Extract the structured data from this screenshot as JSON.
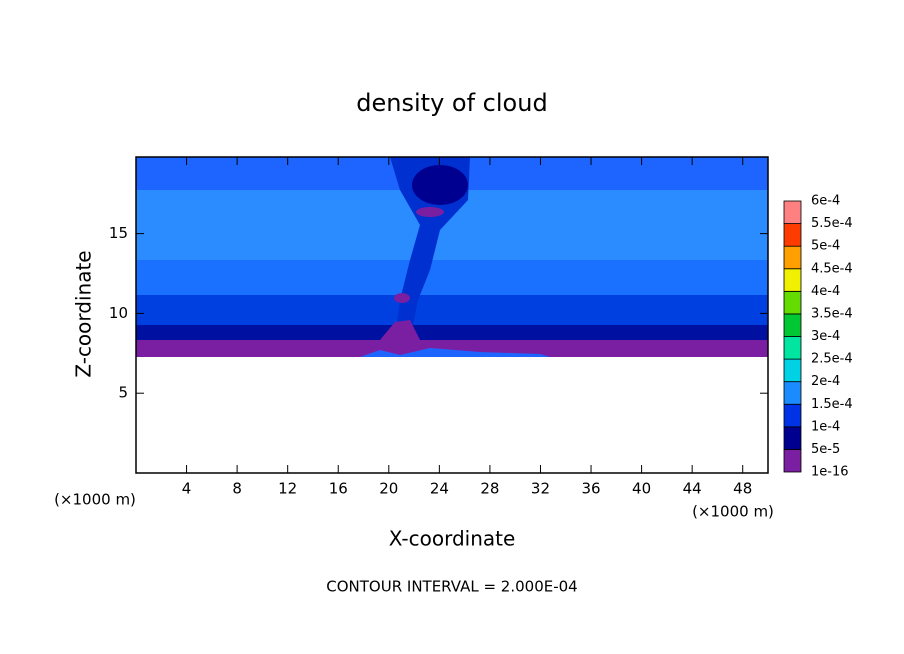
{
  "chart_data": {
    "type": "contour",
    "title": "density of cloud",
    "xlabel": "X-coordinate",
    "ylabel": "Z-coordinate",
    "x_unit": "(×1000 m)",
    "annotation": "CONTOUR INTERVAL = 2.000E-04",
    "xlim": [
      0,
      50
    ],
    "ylim": [
      0,
      19.8
    ],
    "xticks": [
      4,
      8,
      12,
      16,
      20,
      24,
      28,
      32,
      36,
      40,
      44,
      48
    ],
    "yticks": [
      5,
      10,
      15
    ],
    "colorbar": {
      "levels": [
        {
          "value": 1e-16,
          "label": "1e-16"
        },
        {
          "value": 5e-05,
          "label": "5e-5"
        },
        {
          "value": 0.0001,
          "label": "1e-4"
        },
        {
          "value": 0.00015,
          "label": "1.5e-4"
        },
        {
          "value": 0.0002,
          "label": "2e-4"
        },
        {
          "value": 0.00025,
          "label": "2.5e-4"
        },
        {
          "value": 0.0003,
          "label": "3e-4"
        },
        {
          "value": 0.00035,
          "label": "3.5e-4"
        },
        {
          "value": 0.0004,
          "label": "4e-4"
        },
        {
          "value": 0.00045,
          "label": "4.5e-4"
        },
        {
          "value": 0.0005,
          "label": "5e-4"
        },
        {
          "value": 0.00055,
          "label": "5.5e-4"
        },
        {
          "value": 0.0006,
          "label": "6e-4"
        }
      ],
      "colors": [
        "#7a1fa2",
        "#000090",
        "#0033e6",
        "#1a8cff",
        "#00d2e6",
        "#00e6a0",
        "#00c832",
        "#64dc00",
        "#f0f000",
        "#ffa000",
        "#ff3c00",
        "#ff8080"
      ]
    }
  }
}
